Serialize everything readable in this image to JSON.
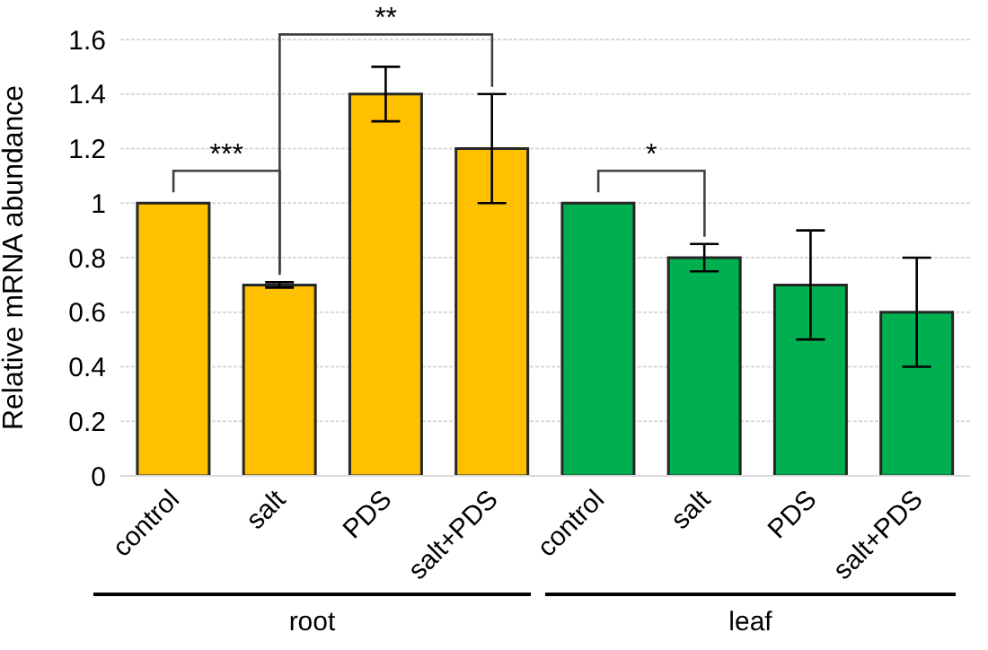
{
  "chart_data": {
    "type": "bar",
    "ylabel": "Relative mRNA abundance",
    "categories": [
      "control",
      "salt",
      "PDS",
      "salt+PDS",
      "control",
      "salt",
      "PDS",
      "salt+PDS"
    ],
    "values": [
      1.0,
      0.7,
      1.4,
      1.2,
      1.0,
      0.8,
      0.7,
      0.6
    ],
    "colors": [
      "#ffc000",
      "#ffc000",
      "#ffc000",
      "#ffc000",
      "#00b050",
      "#00b050",
      "#00b050",
      "#00b050"
    ],
    "errors": [
      null,
      0.01,
      0.1,
      0.2,
      null,
      0.05,
      0.2,
      0.2
    ],
    "ylim": [
      0,
      1.6
    ],
    "yticks": [
      0,
      0.2,
      0.4,
      0.6,
      0.8,
      1,
      1.2,
      1.4,
      1.6
    ],
    "grid": "y",
    "annotations": [
      "***",
      "**",
      "*",
      "root",
      "leaf"
    ]
  }
}
